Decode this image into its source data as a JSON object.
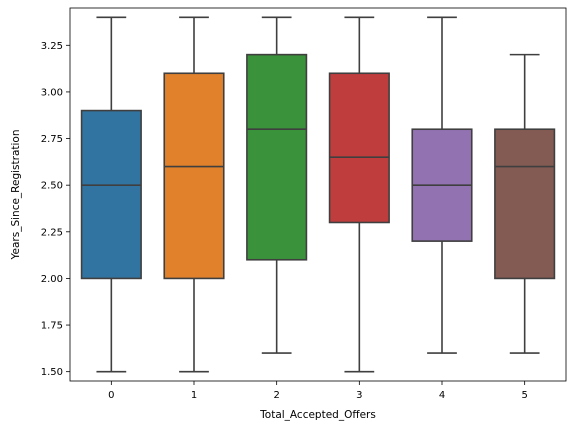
{
  "chart_data": {
    "type": "box",
    "title": "",
    "xlabel": "Total_Accepted_Offers",
    "ylabel": "Years_Since_Registration",
    "categories": [
      "0",
      "1",
      "2",
      "3",
      "4",
      "5"
    ],
    "ylim": [
      1.45,
      3.45
    ],
    "yticks": [
      1.5,
      1.75,
      2.0,
      2.25,
      2.5,
      2.75,
      3.0,
      3.25
    ],
    "ytick_labels": [
      "1.50",
      "1.75",
      "2.00",
      "2.25",
      "2.50",
      "2.75",
      "3.00",
      "3.25"
    ],
    "grid": false,
    "boxes": [
      {
        "category": "0",
        "min": 1.5,
        "q1": 2.0,
        "median": 2.5,
        "q3": 2.9,
        "max": 3.4,
        "color": "#3274a1"
      },
      {
        "category": "1",
        "min": 1.5,
        "q1": 2.0,
        "median": 2.6,
        "q3": 3.1,
        "max": 3.4,
        "color": "#e1812c"
      },
      {
        "category": "2",
        "min": 1.6,
        "q1": 2.1,
        "median": 2.8,
        "q3": 3.2,
        "max": 3.4,
        "color": "#3a923a"
      },
      {
        "category": "3",
        "min": 1.5,
        "q1": 2.3,
        "median": 2.65,
        "q3": 3.1,
        "max": 3.4,
        "color": "#c03d3e"
      },
      {
        "category": "4",
        "min": 1.6,
        "q1": 2.2,
        "median": 2.5,
        "q3": 2.8,
        "max": 3.4,
        "color": "#9372b2"
      },
      {
        "category": "5",
        "min": 1.6,
        "q1": 2.0,
        "median": 2.6,
        "q3": 2.8,
        "max": 3.2,
        "color": "#845b53"
      }
    ]
  }
}
